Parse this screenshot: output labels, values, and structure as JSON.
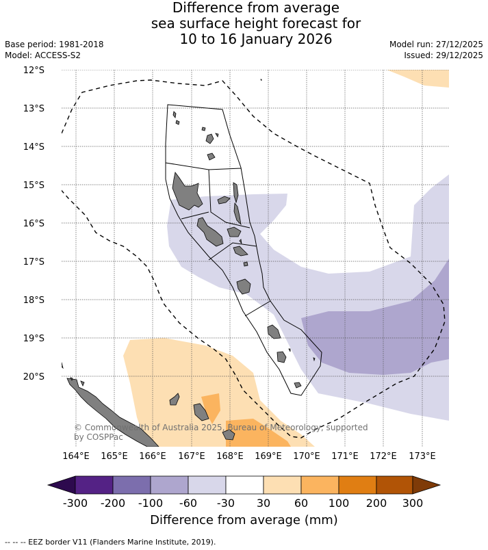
{
  "title": {
    "line1": "Difference from average",
    "line2": "sea surface height forecast for",
    "line3": "10 to 16 January 2026"
  },
  "meta": {
    "base_period": "Base period: 1981-2018",
    "model": "Model: ACCESS-S2",
    "model_run": "Model run: 27/12/2025",
    "issued": "Issued: 29/12/2025"
  },
  "map": {
    "lat_labels": [
      "12°S",
      "13°S",
      "14°S",
      "15°S",
      "16°S",
      "17°S",
      "18°S",
      "19°S",
      "20°S"
    ],
    "lon_labels": [
      "164°E",
      "165°E",
      "166°E",
      "167°E",
      "168°E",
      "169°E",
      "170°E",
      "171°E",
      "172°E",
      "173°E"
    ],
    "copyright_line1": "© Commonwealth of Australia 2025, Bureau of Meteorology, supported",
    "copyright_line2": "by COSPPac"
  },
  "colorbar": {
    "title": "Difference from average (mm)",
    "tick_labels": [
      "-300",
      "-200",
      "-100",
      "-60",
      "-30",
      "30",
      "60",
      "100",
      "200",
      "300"
    ],
    "colors": [
      "#2d0a4e",
      "#542285",
      "#7c6ead",
      "#aea6ce",
      "#d8d7ea",
      "#ffffff",
      "#fddfb3",
      "#fbb45f",
      "#e07e13",
      "#b15406",
      "#7f3b08"
    ]
  },
  "footnote": "--  --  -- EEZ border V11 (Flanders Marine Institute, 2019)."
}
